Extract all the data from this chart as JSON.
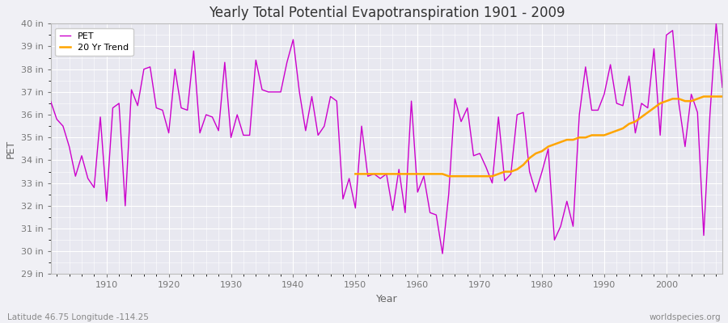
{
  "title": "Yearly Total Potential Evapotranspiration 1901 - 2009",
  "xlabel": "Year",
  "ylabel": "PET",
  "lat_lon_label": "Latitude 46.75 Longitude -114.25",
  "watermark": "worldspecies.org",
  "bg_color": "#f0f0f5",
  "plot_bg_color": "#e8e8f0",
  "pet_color": "#cc00cc",
  "trend_color": "#ffa500",
  "ylim_min": 29,
  "ylim_max": 40,
  "years": [
    1901,
    1902,
    1903,
    1904,
    1905,
    1906,
    1907,
    1908,
    1909,
    1910,
    1911,
    1912,
    1913,
    1914,
    1915,
    1916,
    1917,
    1918,
    1919,
    1920,
    1921,
    1922,
    1923,
    1924,
    1925,
    1926,
    1927,
    1928,
    1929,
    1930,
    1931,
    1932,
    1933,
    1934,
    1935,
    1936,
    1937,
    1938,
    1939,
    1940,
    1941,
    1942,
    1943,
    1944,
    1945,
    1946,
    1947,
    1948,
    1949,
    1950,
    1951,
    1952,
    1953,
    1954,
    1955,
    1956,
    1957,
    1958,
    1959,
    1960,
    1961,
    1962,
    1963,
    1964,
    1965,
    1966,
    1967,
    1968,
    1969,
    1970,
    1971,
    1972,
    1973,
    1974,
    1975,
    1976,
    1977,
    1978,
    1979,
    1980,
    1981,
    1982,
    1983,
    1984,
    1985,
    1986,
    1987,
    1988,
    1989,
    1990,
    1991,
    1992,
    1993,
    1994,
    1995,
    1996,
    1997,
    1998,
    1999,
    2000,
    2001,
    2002,
    2003,
    2004,
    2005,
    2006,
    2007,
    2008,
    2009
  ],
  "pet_values": [
    36.6,
    35.8,
    35.5,
    34.6,
    33.3,
    34.2,
    33.2,
    32.8,
    35.9,
    32.2,
    36.3,
    36.5,
    32.0,
    37.1,
    36.4,
    38.0,
    38.1,
    36.3,
    36.2,
    35.2,
    38.0,
    36.3,
    36.2,
    38.8,
    35.2,
    36.0,
    35.9,
    35.3,
    38.3,
    35.0,
    36.0,
    35.1,
    35.1,
    38.4,
    37.1,
    37.0,
    37.0,
    37.0,
    38.3,
    39.3,
    37.0,
    35.3,
    36.8,
    35.1,
    35.5,
    36.8,
    36.6,
    32.3,
    33.2,
    31.9,
    35.5,
    33.3,
    33.4,
    33.2,
    33.4,
    31.8,
    33.6,
    31.7,
    36.6,
    32.6,
    33.3,
    31.7,
    31.6,
    29.9,
    32.5,
    36.7,
    35.7,
    36.3,
    34.2,
    34.3,
    33.7,
    33.0,
    35.9,
    33.1,
    33.4,
    36.0,
    36.1,
    33.5,
    32.6,
    33.5,
    34.5,
    30.5,
    31.1,
    32.2,
    31.1,
    36.0,
    38.1,
    36.2,
    36.2,
    36.9,
    38.2,
    36.5,
    36.4,
    37.7,
    35.2,
    36.5,
    36.3,
    38.9,
    35.1,
    39.5,
    39.7,
    36.5,
    34.6,
    36.9,
    36.1,
    30.7,
    36.0,
    40.0,
    37.2
  ],
  "trend_years": [
    1950,
    1951,
    1952,
    1953,
    1954,
    1955,
    1956,
    1957,
    1958,
    1959,
    1960,
    1961,
    1962,
    1963,
    1964,
    1965,
    1966,
    1967,
    1968,
    1969,
    1970,
    1971,
    1972,
    1973,
    1974,
    1975,
    1976,
    1977,
    1978,
    1979,
    1980,
    1981,
    1982,
    1983,
    1984,
    1985,
    1986,
    1987,
    1988,
    1989,
    1990,
    1991,
    1992,
    1993,
    1994,
    1995,
    1996,
    1997,
    1998,
    1999,
    2000,
    2001,
    2002,
    2003,
    2004,
    2005,
    2006,
    2007,
    2008,
    2009
  ],
  "trend_values": [
    33.4,
    33.4,
    33.4,
    33.4,
    33.4,
    33.4,
    33.4,
    33.4,
    33.4,
    33.4,
    33.4,
    33.4,
    33.4,
    33.4,
    33.4,
    33.3,
    33.3,
    33.3,
    33.3,
    33.3,
    33.3,
    33.3,
    33.3,
    33.4,
    33.5,
    33.5,
    33.6,
    33.8,
    34.1,
    34.3,
    34.4,
    34.6,
    34.7,
    34.8,
    34.9,
    34.9,
    35.0,
    35.0,
    35.1,
    35.1,
    35.1,
    35.2,
    35.3,
    35.4,
    35.6,
    35.7,
    35.9,
    36.1,
    36.3,
    36.5,
    36.6,
    36.7,
    36.7,
    36.6,
    36.6,
    36.7,
    36.8,
    36.8,
    36.8,
    36.8
  ]
}
